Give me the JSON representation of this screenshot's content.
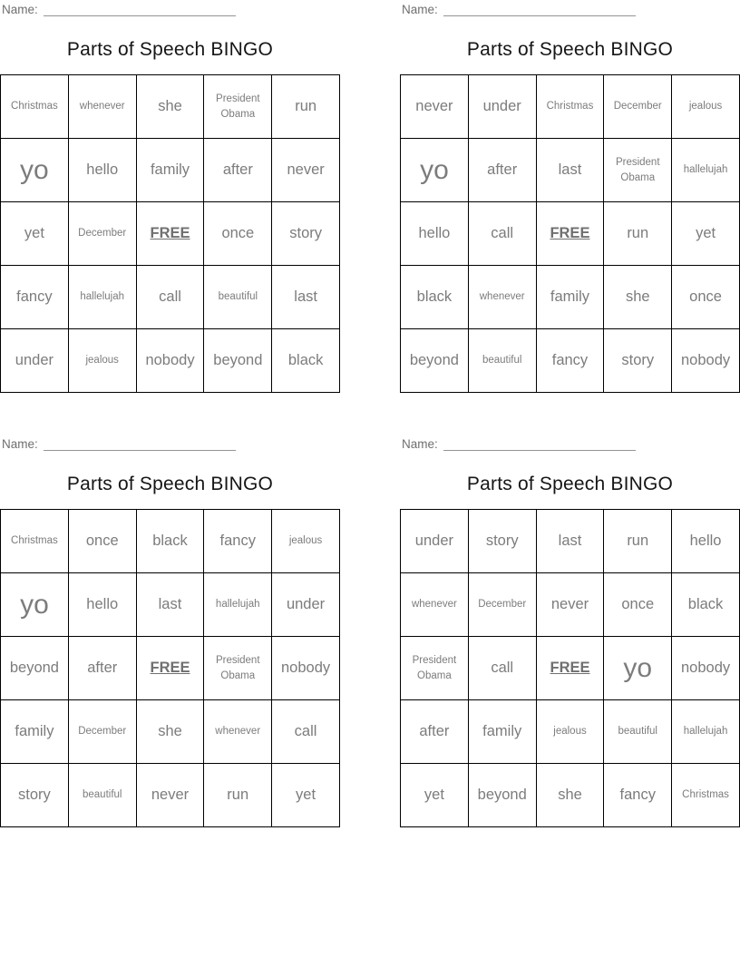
{
  "page": {
    "name_label": "Name:",
    "title": "Parts of Speech BINGO"
  },
  "free_label": "FREE",
  "cards": [
    {
      "rows": [
        [
          "Christmas",
          "whenever",
          "she",
          "President Obama",
          "run"
        ],
        [
          "yo",
          "hello",
          "family",
          "after",
          "never"
        ],
        [
          "yet",
          "December",
          "FREE",
          "once",
          "story"
        ],
        [
          "fancy",
          "hallelujah",
          "call",
          "beautiful",
          "last"
        ],
        [
          "under",
          "jealous",
          "nobody",
          "beyond",
          "black"
        ]
      ]
    },
    {
      "rows": [
        [
          "never",
          "under",
          "Christmas",
          "December",
          "jealous"
        ],
        [
          "yo",
          "after",
          "last",
          "President Obama",
          "hallelujah"
        ],
        [
          "hello",
          "call",
          "FREE",
          "run",
          "yet"
        ],
        [
          "black",
          "whenever",
          "family",
          "she",
          "once"
        ],
        [
          "beyond",
          "beautiful",
          "fancy",
          "story",
          "nobody"
        ]
      ]
    },
    {
      "rows": [
        [
          "Christmas",
          "once",
          "black",
          "fancy",
          "jealous"
        ],
        [
          "yo",
          "hello",
          "last",
          "hallelujah",
          "under"
        ],
        [
          "beyond",
          "after",
          "FREE",
          "President Obama",
          "nobody"
        ],
        [
          "family",
          "December",
          "she",
          "whenever",
          "call"
        ],
        [
          "story",
          "beautiful",
          "never",
          "run",
          "yet"
        ]
      ]
    },
    {
      "rows": [
        [
          "under",
          "story",
          "last",
          "run",
          "hello"
        ],
        [
          "whenever",
          "December",
          "never",
          "once",
          "black"
        ],
        [
          "President Obama",
          "call",
          "FREE",
          "yo",
          "nobody"
        ],
        [
          "after",
          "family",
          "jealous",
          "beautiful",
          "hallelujah"
        ],
        [
          "yet",
          "beyond",
          "she",
          "fancy",
          "Christmas"
        ]
      ]
    }
  ]
}
